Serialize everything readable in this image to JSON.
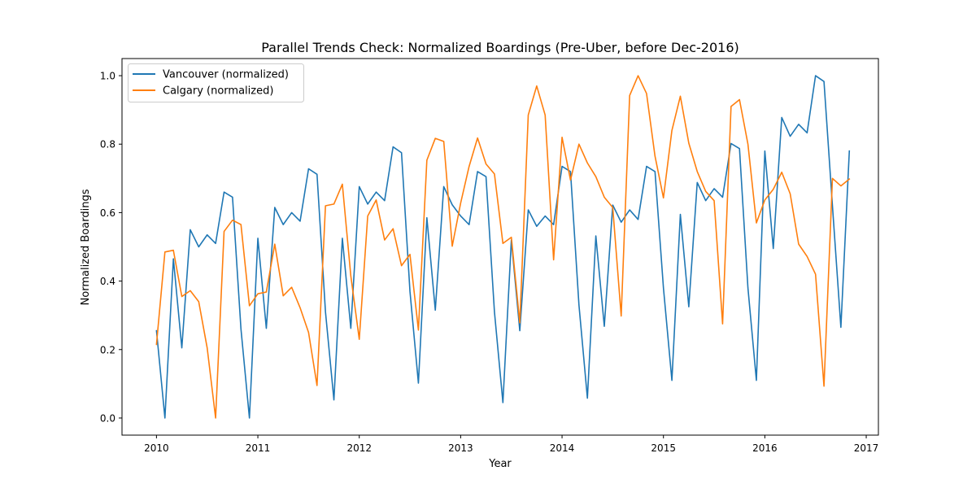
{
  "chart_data": {
    "type": "line",
    "title": "Parallel Trends Check: Normalized Boardings (Pre-Uber, before Dec-2016)",
    "xlabel": "Year",
    "ylabel": "Normalized Boardings",
    "x_unit": "decimal year",
    "xlim": [
      2009.66,
      2017.12
    ],
    "ylim": [
      -0.05,
      1.05
    ],
    "x_ticks": [
      2010,
      2011,
      2012,
      2013,
      2014,
      2015,
      2016,
      2017
    ],
    "x_tick_labels": [
      "2010",
      "2011",
      "2012",
      "2013",
      "2014",
      "2015",
      "2016",
      "2017"
    ],
    "y_ticks": [
      0.0,
      0.2,
      0.4,
      0.6,
      0.8,
      1.0
    ],
    "y_tick_labels": [
      "0.0",
      "0.2",
      "0.4",
      "0.6",
      "0.8",
      "1.0"
    ],
    "grid": false,
    "legend_position": "top-left",
    "x": [
      2010.0,
      2010.0833,
      2010.1667,
      2010.25,
      2010.3333,
      2010.4167,
      2010.5,
      2010.5833,
      2010.6667,
      2010.75,
      2010.8333,
      2010.9167,
      2011.0,
      2011.0833,
      2011.1667,
      2011.25,
      2011.3333,
      2011.4167,
      2011.5,
      2011.5833,
      2011.6667,
      2011.75,
      2011.8333,
      2011.9167,
      2012.0,
      2012.0833,
      2012.1667,
      2012.25,
      2012.3333,
      2012.4167,
      2012.5,
      2012.5833,
      2012.6667,
      2012.75,
      2012.8333,
      2012.9167,
      2013.0,
      2013.0833,
      2013.1667,
      2013.25,
      2013.3333,
      2013.4167,
      2013.5,
      2013.5833,
      2013.6667,
      2013.75,
      2013.8333,
      2013.9167,
      2014.0,
      2014.0833,
      2014.1667,
      2014.25,
      2014.3333,
      2014.4167,
      2014.5,
      2014.5833,
      2014.6667,
      2014.75,
      2014.8333,
      2014.9167,
      2015.0,
      2015.0833,
      2015.1667,
      2015.25,
      2015.3333,
      2015.4167,
      2015.5,
      2015.5833,
      2015.6667,
      2015.75,
      2015.8333,
      2015.9167,
      2016.0,
      2016.0833,
      2016.1667,
      2016.25,
      2016.3333,
      2016.4167,
      2016.5,
      2016.5833,
      2016.6667,
      2016.75,
      2016.8333
    ],
    "series": [
      {
        "name": "Vancouver (normalized)",
        "color": "#1f77b4",
        "values": [
          0.255,
          0.0,
          0.465,
          0.205,
          0.55,
          0.5,
          0.535,
          0.51,
          0.66,
          0.645,
          0.26,
          0.0,
          0.525,
          0.262,
          0.615,
          0.565,
          0.6,
          0.575,
          0.728,
          0.712,
          0.31,
          0.053,
          0.525,
          0.262,
          0.676,
          0.625,
          0.66,
          0.635,
          0.792,
          0.775,
          0.37,
          0.102,
          0.585,
          0.315,
          0.676,
          0.623,
          0.59,
          0.565,
          0.72,
          0.705,
          0.31,
          0.045,
          0.52,
          0.255,
          0.608,
          0.56,
          0.59,
          0.565,
          0.735,
          0.72,
          0.33,
          0.058,
          0.532,
          0.268,
          0.622,
          0.572,
          0.608,
          0.58,
          0.735,
          0.72,
          0.38,
          0.11,
          0.595,
          0.325,
          0.688,
          0.635,
          0.67,
          0.645,
          0.802,
          0.787,
          0.38,
          0.11,
          0.78,
          0.495,
          0.878,
          0.823,
          0.858,
          0.833,
          1.0,
          0.983,
          0.62,
          0.265,
          0.78
        ]
      },
      {
        "name": "Calgary (normalized)",
        "color": "#ff7f0e",
        "values": [
          0.215,
          0.485,
          0.49,
          0.355,
          0.372,
          0.34,
          0.205,
          0.0,
          0.545,
          0.578,
          0.565,
          0.328,
          0.363,
          0.368,
          0.508,
          0.357,
          0.382,
          0.322,
          0.25,
          0.095,
          0.62,
          0.625,
          0.683,
          0.415,
          0.23,
          0.59,
          0.637,
          0.52,
          0.553,
          0.445,
          0.478,
          0.257,
          0.753,
          0.817,
          0.808,
          0.502,
          0.628,
          0.735,
          0.818,
          0.742,
          0.713,
          0.51,
          0.528,
          0.278,
          0.885,
          0.97,
          0.885,
          0.462,
          0.82,
          0.695,
          0.8,
          0.745,
          0.705,
          0.645,
          0.615,
          0.298,
          0.942,
          1.0,
          0.948,
          0.765,
          0.643,
          0.84,
          0.94,
          0.803,
          0.72,
          0.662,
          0.635,
          0.275,
          0.91,
          0.93,
          0.8,
          0.57,
          0.637,
          0.668,
          0.718,
          0.655,
          0.508,
          0.472,
          0.42,
          0.093,
          0.7,
          0.678,
          0.698
        ]
      }
    ]
  }
}
